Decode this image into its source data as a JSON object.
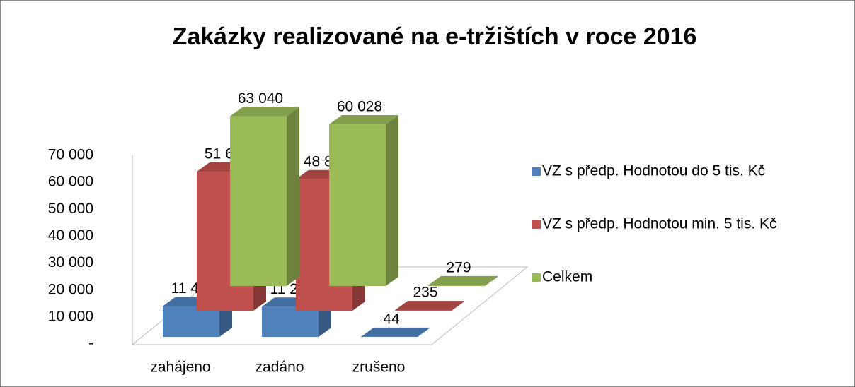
{
  "chart_data": {
    "type": "bar3d",
    "title": "Zakázky realizované na e-tržištích v roce 2016",
    "categories": [
      "zahájeno",
      "zadáno",
      "zrušeno"
    ],
    "series": [
      {
        "name": "VZ s předp. Hodnotou do 5 tis. Kč",
        "color": "#4f81bd",
        "values": [
          11408,
          11203,
          44
        ],
        "value_labels": [
          "11 408",
          "11 203",
          "44"
        ]
      },
      {
        "name": "VZ s předp. Hodnotou min. 5 tis. Kč",
        "color": "#c0504d",
        "values": [
          51632,
          48825,
          235
        ],
        "value_labels": [
          "51 632",
          "48 825",
          "235"
        ]
      },
      {
        "name": "Celkem",
        "color": "#9bbb59",
        "values": [
          63040,
          60028,
          279
        ],
        "value_labels": [
          "63 040",
          "60 028",
          "279"
        ]
      }
    ],
    "ylim": [
      0,
      70000
    ],
    "yticks": [
      {
        "value": 0,
        "label": "-"
      },
      {
        "value": 10000,
        "label": "10 000"
      },
      {
        "value": 20000,
        "label": "20 000"
      },
      {
        "value": 30000,
        "label": "30 000"
      },
      {
        "value": 40000,
        "label": "40 000"
      },
      {
        "value": 50000,
        "label": "50 000"
      },
      {
        "value": 60000,
        "label": "60 000"
      },
      {
        "value": 70000,
        "label": "70 000"
      }
    ],
    "legend": "right",
    "grid": false
  }
}
